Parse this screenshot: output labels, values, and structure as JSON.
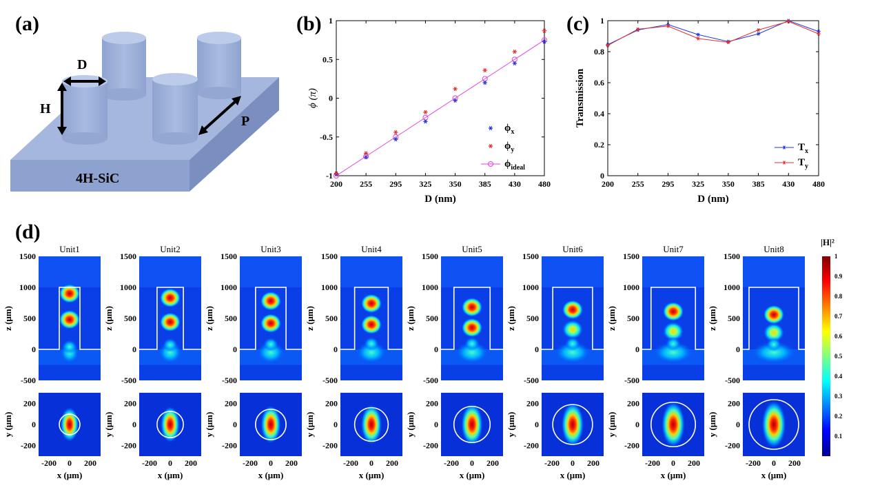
{
  "panel_labels": {
    "a": "(a)",
    "b": "(b)",
    "c": "(c)",
    "d": "(d)"
  },
  "schematic": {
    "dim_D": "D",
    "dim_H": "H",
    "dim_P": "P",
    "substrate": "4H-SiC",
    "colors": {
      "top": "#a6b8dd",
      "front": "#8aa0cf",
      "side": "#7b91c2",
      "pillar": "#9eb1d9",
      "pillar_top": "#b9c8e8"
    }
  },
  "chart_data": [
    {
      "type": "scatter",
      "panel": "b",
      "categories": [
        "200",
        "255",
        "295",
        "325",
        "350",
        "385",
        "430",
        "480"
      ],
      "xlabel": "D (nm)",
      "ylabel": "ϕ (π)",
      "ylim": [
        -1,
        1
      ],
      "yticks": [
        "-1",
        "-0.5",
        "0",
        "0.5",
        "1"
      ],
      "grid": false,
      "legend_position": "bottom-right",
      "series": [
        {
          "name": "ϕx",
          "label_main": "ϕ",
          "label_sub": "x",
          "marker": "star",
          "color": "#2233dd",
          "values": [
            -0.98,
            -0.76,
            -0.53,
            -0.3,
            -0.03,
            0.2,
            0.45,
            0.73
          ]
        },
        {
          "name": "ϕy",
          "label_main": "ϕ",
          "label_sub": "y",
          "marker": "star",
          "color": "#e03030",
          "values": [
            -0.97,
            -0.71,
            -0.44,
            -0.18,
            0.12,
            0.36,
            0.6,
            0.87
          ]
        },
        {
          "name": "ϕideal",
          "label_main": "ϕ",
          "label_sub": "ideal",
          "marker": "circle-line",
          "color": "#e040e0",
          "values": [
            -1.0,
            -0.75,
            -0.5,
            -0.25,
            0.0,
            0.25,
            0.5,
            0.75
          ]
        }
      ]
    },
    {
      "type": "line",
      "panel": "c",
      "categories": [
        "200",
        "255",
        "295",
        "325",
        "350",
        "385",
        "430",
        "480"
      ],
      "xlabel": "D (nm)",
      "ylabel": "Transmission",
      "ylim": [
        0,
        1
      ],
      "yticks": [
        "0",
        "0.2",
        "0.4",
        "0.6",
        "0.8",
        "1"
      ],
      "grid": false,
      "legend_position": "bottom-right",
      "series": [
        {
          "name": "Tx",
          "label_main": "T",
          "label_sub": "x",
          "color": "#2233dd",
          "values": [
            0.845,
            0.94,
            0.975,
            0.91,
            0.865,
            0.915,
            1.0,
            0.93
          ]
        },
        {
          "name": "Ty",
          "label_main": "T",
          "label_sub": "y",
          "color": "#e03030",
          "values": [
            0.84,
            0.945,
            0.965,
            0.885,
            0.86,
            0.94,
            0.995,
            0.915
          ]
        }
      ]
    },
    {
      "type": "heatmap",
      "panel": "d",
      "colorbar_label": "|H|²",
      "colorbar_ticks": [
        "0.1",
        "0.2",
        "0.3",
        "0.4",
        "0.5",
        "0.6",
        "0.7",
        "0.8",
        "0.9",
        "1"
      ],
      "xz_plot": {
        "ylabel": "z (μm)",
        "yticks": [
          "1500",
          "1000",
          "500",
          "0",
          "-500"
        ]
      },
      "xy_plot": {
        "ylabel": "y (μm)",
        "yticks": [
          "200",
          "0",
          "-200"
        ],
        "xlabel": "x (μm)",
        "xticks": [
          "-200",
          "0",
          "200"
        ]
      },
      "units": [
        {
          "title": "Unit1",
          "hotspots_z": [
            900,
            480,
            40
          ],
          "diameter": 200
        },
        {
          "title": "Unit2",
          "hotspots_z": [
            830,
            440,
            70
          ],
          "diameter": 255
        },
        {
          "title": "Unit3",
          "hotspots_z": [
            780,
            420,
            80
          ],
          "diameter": 295
        },
        {
          "title": "Unit4",
          "hotspots_z": [
            740,
            400,
            90
          ],
          "diameter": 325
        },
        {
          "title": "Unit5",
          "hotspots_z": [
            680,
            350,
            90
          ],
          "diameter": 350
        },
        {
          "title": "Unit6",
          "hotspots_z": [
            640,
            320,
            90
          ],
          "diameter": 385
        },
        {
          "title": "Unit7",
          "hotspots_z": [
            610,
            290,
            90
          ],
          "diameter": 430
        },
        {
          "title": "Unit8",
          "hotspots_z": [
            560,
            270,
            80
          ],
          "diameter": 480
        }
      ]
    }
  ]
}
